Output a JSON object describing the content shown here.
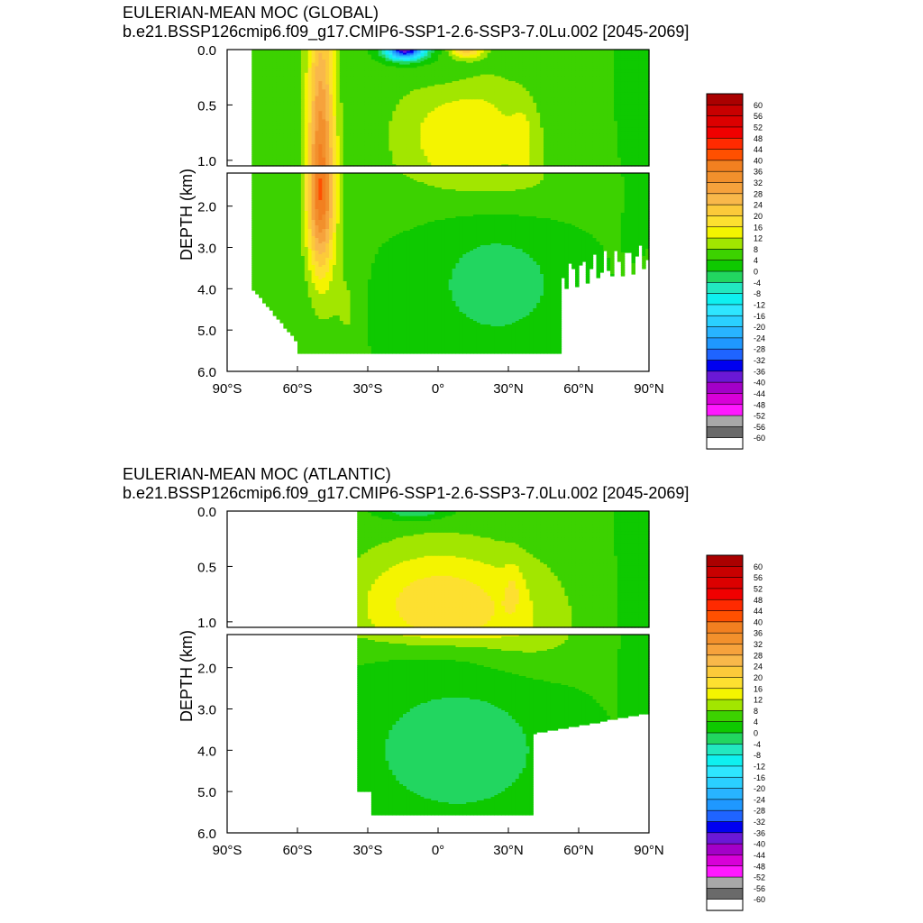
{
  "chart_data": [
    {
      "type": "contour",
      "title": "EULERIAN-MEAN MOC (GLOBAL)",
      "subtitle": "b.e21.BSSP126cmip6.f09_g17.CMIP6-SSP1-2.6-SSP3-7.0Lu.002 [2045-2069]",
      "ylabel": "DEPTH (km)",
      "x_ticks": [
        "90°S",
        "60°S",
        "30°S",
        "0°",
        "30°N",
        "60°N",
        "90°N"
      ],
      "x_tick_values": [
        -90,
        -60,
        -30,
        0,
        30,
        60,
        90
      ],
      "y_ticks_upper": [
        "0.0",
        "0.5",
        "1.0"
      ],
      "y_ticks_upper_values": [
        0,
        0.5,
        1.0
      ],
      "y_ticks_lower": [
        "2.0",
        "3.0",
        "4.0",
        "5.0",
        "6.0"
      ],
      "y_ticks_lower_values": [
        2,
        3,
        4,
        5,
        6
      ],
      "xlim": [
        -90,
        90
      ],
      "ylim_upper": [
        0,
        1.05
      ],
      "ylim_lower": [
        1.2,
        6
      ],
      "colorbar_labels": [
        "60",
        "56",
        "52",
        "48",
        "44",
        "40",
        "36",
        "32",
        "28",
        "24",
        "20",
        "16",
        "12",
        "8",
        "4",
        "0",
        "-4",
        "-8",
        "-12",
        "-16",
        "-20",
        "-24",
        "-28",
        "-32",
        "-36",
        "-40",
        "-44",
        "-48",
        "-52",
        "-56",
        "-60"
      ],
      "features": [
        {
          "description": "Southern Ocean positive cell (Deacon/AABW overturning)",
          "lat_range": [
            -62,
            -38
          ],
          "depth_range": [
            0,
            4.0
          ],
          "max_value": 36
        },
        {
          "description": "Negative surface cell near equator",
          "lat_range": [
            -27,
            -1
          ],
          "depth_range": [
            0,
            0.2
          ],
          "min_value": -40
        },
        {
          "description": "Positive near-surface cell north of equator",
          "lat_range": [
            4,
            30
          ],
          "depth_range": [
            0,
            0.2
          ],
          "max_value": 16
        },
        {
          "description": "Negative abyssal cell",
          "lat_range": [
            -2,
            58
          ],
          "depth_range": [
            2.6,
            5.5
          ],
          "min_value": -4
        }
      ]
    },
    {
      "type": "contour",
      "title": "EULERIAN-MEAN MOC (ATLANTIC)",
      "subtitle": "b.e21.BSSP126cmip6.f09_g17.CMIP6-SSP1-2.6-SSP3-7.0Lu.002 [2045-2069]",
      "ylabel": "DEPTH (km)",
      "x_ticks": [
        "90°S",
        "60°S",
        "30°S",
        "0°",
        "30°N",
        "60°N",
        "90°N"
      ],
      "x_tick_values": [
        -90,
        -60,
        -30,
        0,
        30,
        60,
        90
      ],
      "y_ticks_upper": [
        "0.0",
        "0.5",
        "1.0"
      ],
      "y_ticks_upper_values": [
        0,
        0.5,
        1.0
      ],
      "y_ticks_lower": [
        "2.0",
        "3.0",
        "4.0",
        "5.0",
        "6.0"
      ],
      "y_ticks_lower_values": [
        2,
        3,
        4,
        5,
        6
      ],
      "xlim": [
        -90,
        90
      ],
      "ylim_upper": [
        0,
        1.05
      ],
      "ylim_lower": [
        1.2,
        6
      ],
      "colorbar_labels": [
        "60",
        "56",
        "52",
        "48",
        "44",
        "40",
        "36",
        "32",
        "28",
        "24",
        "20",
        "16",
        "12",
        "8",
        "4",
        "0",
        "-4",
        "-8",
        "-12",
        "-16",
        "-20",
        "-24",
        "-28",
        "-32",
        "-36",
        "-40",
        "-44",
        "-48",
        "-52",
        "-56",
        "-60"
      ],
      "features": [
        {
          "description": "AMOC upper cell",
          "lat_range": [
            -33,
            52
          ],
          "depth_range": [
            0.3,
            1.3
          ],
          "max_value": 16
        },
        {
          "description": "Negative abyssal cell (AABW)",
          "lat_range": [
            -33,
            50
          ],
          "depth_range": [
            2.7,
            5.5
          ],
          "min_value": -4
        },
        {
          "description": "Negative surface cell",
          "lat_range": [
            -33,
            5
          ],
          "depth_range": [
            0,
            0.05
          ],
          "min_value": -8
        }
      ]
    }
  ],
  "colors": {
    "levels": [
      "#aa0000",
      "#c80000",
      "#dc0000",
      "#f00000",
      "#ff2a00",
      "#ff5000",
      "#f28020",
      "#f2902c",
      "#f6a23c",
      "#f9b84a",
      "#fcca3a",
      "#fde030",
      "#f4f400",
      "#a2e600",
      "#3cd200",
      "#0ec900",
      "#22d660",
      "#22e8c0",
      "#0ef0f0",
      "#2ee6ff",
      "#2ad0ff",
      "#28b4ff",
      "#1f98ff",
      "#1f64ff",
      "#0000f0",
      "#6a18d6",
      "#a300c8",
      "#d800d8",
      "#ff18ff",
      "#a8a8a8",
      "#6a6a6a",
      "#ffffff"
    ]
  }
}
